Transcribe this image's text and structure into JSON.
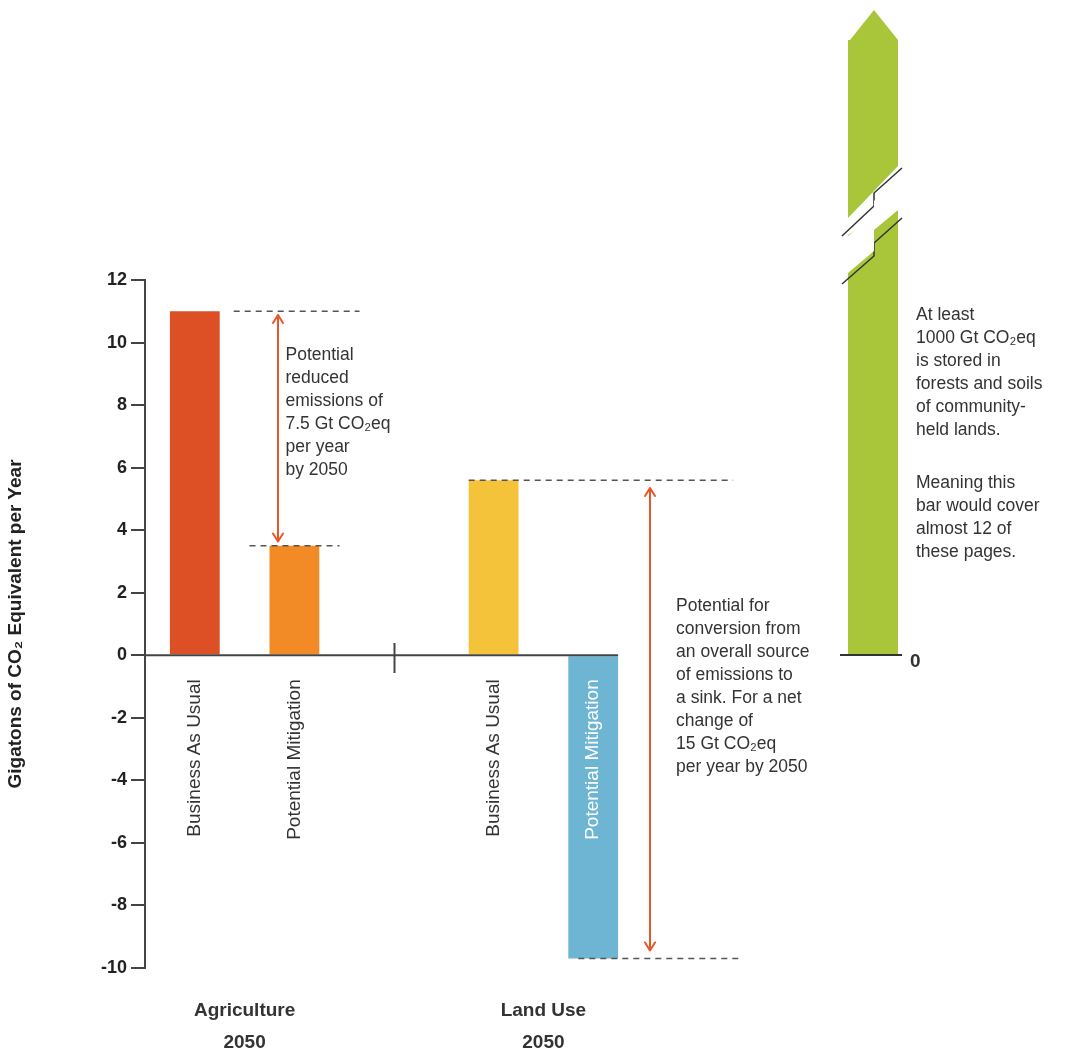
{
  "chart_data": {
    "type": "bar",
    "categories": [
      "Business As Usual",
      "Potential Mitigation",
      null,
      "Business As Usual",
      "Potential Mitigation"
    ],
    "values": [
      11,
      3.5,
      null,
      5.6,
      -9.7
    ],
    "colors": [
      "#dd4f24",
      "#f28a25",
      "#ffffff",
      "#f4c33a",
      "#6eb5d3"
    ],
    "ylabel": "Gigatons of CO₂ Equivalent per Year",
    "ref_lines": [
      {
        "axis": "y",
        "value": 11,
        "line_style": "dashed",
        "color": "#555555"
      },
      {
        "axis": "y",
        "value": 3.5,
        "line_style": "dashed",
        "color": "#555555"
      },
      {
        "axis": "y",
        "value": 5.6,
        "line_style": "dashed",
        "color": "#555555"
      },
      {
        "axis": "y",
        "value": -9.7,
        "line_style": "dashed",
        "color": "#555555"
      }
    ],
    "ylim": [
      -10,
      12
    ],
    "yticks": [
      -10,
      -8,
      -6,
      -4,
      -2,
      0,
      2,
      4,
      6,
      8,
      10,
      12
    ],
    "annotations": [
      "Potential\nreduced\nemissions of\n7.5 Gt CO₂eq\nper year\nby 2050",
      "Potential for\nconversion from\nan overall source\nof emissions to\na sink. For a net\nchange of\n15 Gt CO₂eq\nper year by 2050",
      "At least\n1000 Gt CO₂eq\nis stored in\nforests and soils\nof community-\nheld lands.",
      "Meaning this\nbar would cover\nalmost 12 of\nthese pages.",
      "0",
      "Agriculture\n2050",
      "Land Use\n2050"
    ]
  }
}
